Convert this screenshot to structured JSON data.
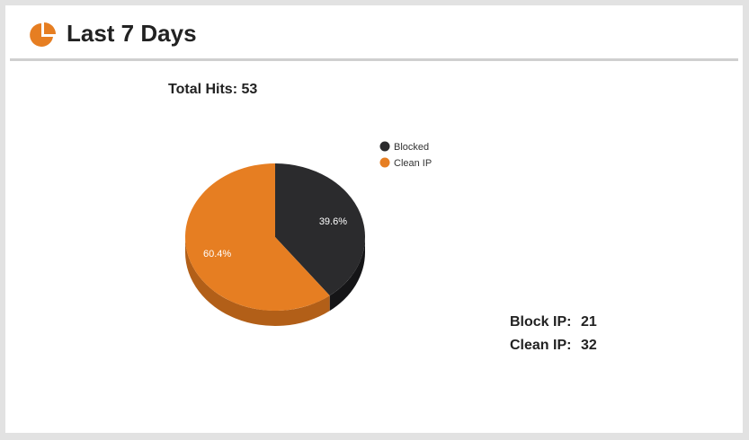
{
  "header": {
    "title": "Last 7 Days",
    "icon": "pie-chart-icon",
    "icon_color": "#e67e22"
  },
  "total_hits": "Total Hits: 53",
  "stats": [
    {
      "label": "Block IP:",
      "value": "21"
    },
    {
      "label": "Clean IP:",
      "value": "32"
    }
  ],
  "chart_data": {
    "type": "pie",
    "style": "3d",
    "legend_position": "top-right",
    "series": [
      {
        "name": "Blocked",
        "value": 21,
        "label": "39.6%",
        "color": "#2b2b2d",
        "side_color": "#151517"
      },
      {
        "name": "Clean IP",
        "value": 32,
        "label": "60.4%",
        "color": "#e67e22",
        "side_color": "#b25f18"
      }
    ]
  }
}
